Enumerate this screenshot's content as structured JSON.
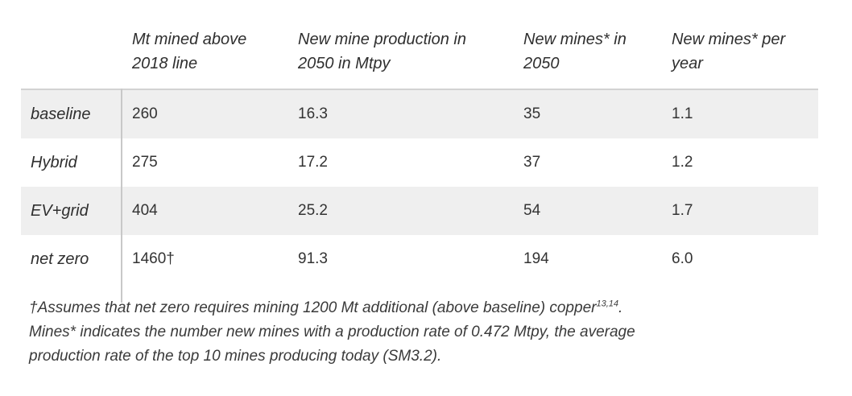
{
  "table": {
    "headers": [
      "",
      "Mt mined above\n2018 line",
      "New mine production in\n2050 in Mtpy",
      "New mines* in\n2050",
      "New mines* per\nyear"
    ],
    "rows": [
      {
        "label": "baseline",
        "mt_mined": "260",
        "production": "16.3",
        "mines_2050": "35",
        "mines_per_year": "1.1"
      },
      {
        "label": "Hybrid",
        "mt_mined": "275",
        "production": "17.2",
        "mines_2050": "37",
        "mines_per_year": "1.2"
      },
      {
        "label": "EV+grid",
        "mt_mined": "404",
        "production": "25.2",
        "mines_2050": "54",
        "mines_per_year": "1.7"
      },
      {
        "label": "net zero",
        "mt_mined": "1460†",
        "production": "91.3",
        "mines_2050": "194",
        "mines_per_year": "6.0"
      }
    ]
  },
  "footnote": {
    "line1_text": "†Assumes that net zero requires mining 1200 Mt additional (above baseline) copper",
    "line1_sup": "13,14",
    "line1_end": ".",
    "line2": "Mines* indicates the number new mines with a production rate of 0.472 Mtpy, the average",
    "line3": "production rate of the top 10 mines producing today (SM3.2)."
  }
}
